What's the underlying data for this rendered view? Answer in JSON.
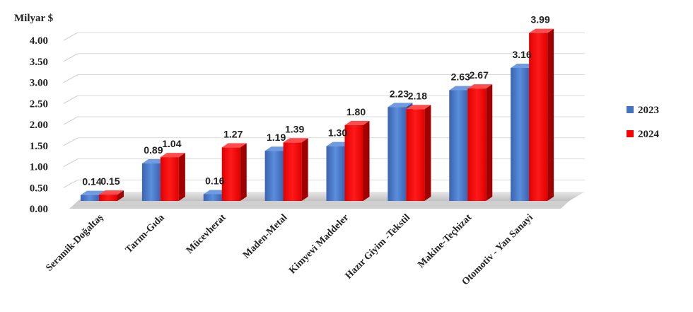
{
  "chart_data": {
    "type": "bar",
    "ylabel": "Milyar $",
    "ylim": [
      0,
      4
    ],
    "yticks": [
      "0.00",
      "0.50",
      "1.00",
      "1.50",
      "2.00",
      "2.50",
      "3.00",
      "3.50",
      "4.00"
    ],
    "categories": [
      "Seramik-Doğaltaş",
      "Tarım-Gıda",
      "Mücevherat",
      "Maden-Metal",
      "Kimyevi Maddeler",
      "Hazır Giyim -Tekstil",
      "Makine-Teçhizat",
      "Otomotiv - Yan Sanayi"
    ],
    "series": [
      {
        "name": "2023",
        "color": "#4472C4",
        "values": [
          0.14,
          0.89,
          0.16,
          1.19,
          1.3,
          2.23,
          2.63,
          3.16
        ],
        "labels": [
          "0.14",
          "0.89",
          "0.16",
          "1.19",
          "1.30",
          "2.23",
          "2.63",
          "3.16"
        ]
      },
      {
        "name": "2024",
        "color": "#FF0000",
        "values": [
          0.15,
          1.04,
          1.27,
          1.39,
          1.8,
          2.18,
          2.67,
          3.99
        ],
        "labels": [
          "0.15",
          "1.04",
          "1.27",
          "1.39",
          "1.80",
          "2.18",
          "2.67",
          "3.99"
        ]
      }
    ],
    "grid": true,
    "legend_position": "right"
  }
}
